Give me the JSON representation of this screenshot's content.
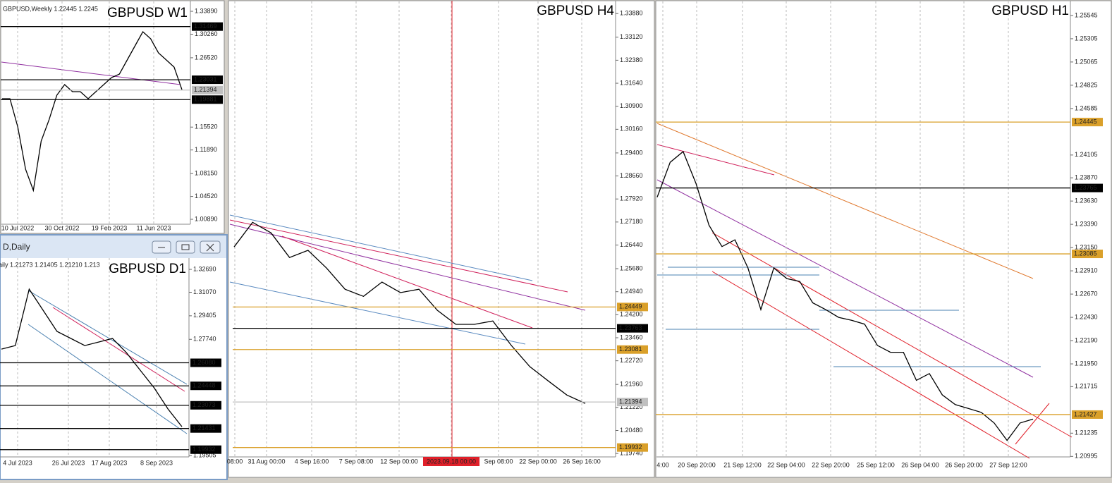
{
  "window_title": "D,Daily",
  "chart_data": [
    {
      "type": "line",
      "title": "GBPUSD W1",
      "header": "GBPUSD,Weekly  1.22445 1.2245",
      "color": "#000000",
      "values": [
        1.2002,
        1.2002,
        1.1555,
        1.0883,
        1.0548,
        1.1331,
        1.1666,
        1.2058,
        1.2226,
        1.2114,
        1.2114,
        1.2002,
        1.2114,
        1.2226,
        1.2338,
        1.2393,
        1.2617,
        1.2841,
        1.3065,
        1.2953,
        1.2729,
        1.2617,
        1.2505,
        1.2147
      ],
      "ylim": [
        1.0011,
        1.3546
      ],
      "yticks": [
        {
          "value": 1.3389,
          "label": "1.33890"
        },
        {
          "value": 1.3026,
          "label": "1.30260"
        },
        {
          "value": 1.2652,
          "label": "1.26520"
        },
        {
          "value": 1.1552,
          "label": "1.15520"
        },
        {
          "value": 1.1189,
          "label": "1.11890"
        },
        {
          "value": 1.0815,
          "label": "1.08150"
        },
        {
          "value": 1.0452,
          "label": "1.04520"
        },
        {
          "value": 1.0089,
          "label": "1.00890"
        }
      ],
      "levels": [
        {
          "value": 1.31469,
          "label": "1.31469",
          "color": "#000000"
        },
        {
          "value": 1.23031,
          "label": "1.23031",
          "color": "#000000"
        },
        {
          "value": 1.21394,
          "label": "1.21394",
          "color": "#c0c0c0"
        },
        {
          "value": 1.19881,
          "label": "1.19881",
          "color": "#000000"
        }
      ],
      "xtick_labels": [
        "10 Jul 2022",
        "30 Oct 2022",
        "19 Feb 2023",
        "11 Jun 2023"
      ]
    },
    {
      "type": "line",
      "title": "GBPUSD D1",
      "header": "aily  1.21273 1.21405 1.21210 1.213",
      "color": "#000000",
      "values": [
        1.2705,
        1.273,
        1.3129,
        1.298,
        1.283,
        1.278,
        1.273,
        1.2755,
        1.278,
        1.268,
        1.2555,
        1.2431,
        1.2281,
        1.2156
      ],
      "ylim": [
        1.1942,
        1.3349
      ],
      "yticks": [
        {
          "value": 1.3269,
          "label": "1.32690"
        },
        {
          "value": 1.3107,
          "label": "1.31070"
        },
        {
          "value": 1.29405,
          "label": "1.29405"
        },
        {
          "value": 1.2774,
          "label": "1.27740"
        },
        {
          "value": 1.19505,
          "label": "1.19505"
        }
      ],
      "levels": [
        {
          "value": 1.2608,
          "label": "1.26080",
          "color": "#000000"
        },
        {
          "value": 1.24448,
          "label": "1.24448",
          "color": "#000000"
        },
        {
          "value": 1.23073,
          "label": "1.23073",
          "color": "#000000"
        },
        {
          "value": 1.21431,
          "label": "1.21431",
          "color": "#000000"
        },
        {
          "value": 1.19932,
          "label": "1.19932",
          "color": "#000000"
        }
      ],
      "xtick_labels": [
        "4 Jul 2023",
        "26 Jul 2023",
        "17 Aug 2023",
        "8 Sep 2023"
      ]
    },
    {
      "type": "line",
      "title": "GBPUSD H4",
      "color": "#000000",
      "values": [
        1.2638,
        1.2717,
        1.2683,
        1.2604,
        1.2627,
        1.257,
        1.2502,
        1.2479,
        1.2525,
        1.2491,
        1.2502,
        1.2434,
        1.2389,
        1.2389,
        1.24,
        1.2321,
        1.2253,
        1.2207,
        1.2162,
        1.2135
      ],
      "ylim": [
        1.1963,
        1.3427
      ],
      "yticks": [
        {
          "value": 1.3388,
          "label": "1.33880"
        },
        {
          "value": 1.3312,
          "label": "1.33120"
        },
        {
          "value": 1.3238,
          "label": "1.32380"
        },
        {
          "value": 1.3164,
          "label": "1.31640"
        },
        {
          "value": 1.309,
          "label": "1.30900"
        },
        {
          "value": 1.3016,
          "label": "1.30160"
        },
        {
          "value": 1.294,
          "label": "1.29400"
        },
        {
          "value": 1.2866,
          "label": "1.28660"
        },
        {
          "value": 1.2792,
          "label": "1.27920"
        },
        {
          "value": 1.2718,
          "label": "1.27180"
        },
        {
          "value": 1.2644,
          "label": "1.26440"
        },
        {
          "value": 1.2568,
          "label": "1.25680"
        },
        {
          "value": 1.2494,
          "label": "1.24940"
        },
        {
          "value": 1.242,
          "label": "1.24200"
        },
        {
          "value": 1.2346,
          "label": "1.23460"
        },
        {
          "value": 1.2272,
          "label": "1.22720"
        },
        {
          "value": 1.2196,
          "label": "1.21960"
        },
        {
          "value": 1.2122,
          "label": "1.21220"
        },
        {
          "value": 1.2048,
          "label": "1.20480"
        },
        {
          "value": 1.1974,
          "label": "1.19740"
        }
      ],
      "levels": [
        {
          "value": 1.24449,
          "label": "1.24449",
          "color": "#daa02a"
        },
        {
          "value": 1.23763,
          "label": "1.23763",
          "color": "#000000"
        },
        {
          "value": 1.23081,
          "label": "1.23081",
          "color": "#daa02a"
        },
        {
          "value": 1.21394,
          "label": "1.21394",
          "color": "#c0c0c0"
        },
        {
          "value": 1.19932,
          "label": "1.19932",
          "color": "#daa02a"
        }
      ],
      "xtick_labels": [
        "08:00",
        "31 Aug 00:00",
        "4 Sep 16:00",
        "7 Sep 08:00",
        "12 Sep 00:00",
        "2023.09.18 00:00",
        "Sep 08:00",
        "22 Sep 00:00",
        "26 Sep 16:00"
      ],
      "highlight_xtick": "2023.09.18 00:00"
    },
    {
      "type": "line",
      "title": "GBPUSD H1",
      "color": "#000000",
      "values": [
        1.2367,
        1.2403,
        1.2414,
        1.2381,
        1.2338,
        1.2316,
        1.2323,
        1.2294,
        1.2251,
        1.2294,
        1.2283,
        1.228,
        1.2258,
        1.2251,
        1.2243,
        1.224,
        1.2236,
        1.2214,
        1.2207,
        1.2207,
        1.2178,
        1.2185,
        1.2163,
        1.2153,
        1.2149,
        1.2145,
        1.2134,
        1.2116,
        1.2134,
        1.2138
      ],
      "ylim": [
        1.2099,
        1.2569
      ],
      "yticks": [
        {
          "value": 1.25545,
          "label": "1.25545"
        },
        {
          "value": 1.25305,
          "label": "1.25305"
        },
        {
          "value": 1.25065,
          "label": "1.25065"
        },
        {
          "value": 1.24825,
          "label": "1.24825"
        },
        {
          "value": 1.24585,
          "label": "1.24585"
        },
        {
          "value": 1.24105,
          "label": "1.24105"
        },
        {
          "value": 1.2387,
          "label": "1.23870"
        },
        {
          "value": 1.2363,
          "label": "1.23630"
        },
        {
          "value": 1.2339,
          "label": "1.23390"
        },
        {
          "value": 1.2315,
          "label": "1.23150"
        },
        {
          "value": 1.2291,
          "label": "1.22910"
        },
        {
          "value": 1.2267,
          "label": "1.22670"
        },
        {
          "value": 1.2243,
          "label": "1.22430"
        },
        {
          "value": 1.2219,
          "label": "1.22190"
        },
        {
          "value": 1.2195,
          "label": "1.21950"
        },
        {
          "value": 1.21715,
          "label": "1.21715"
        },
        {
          "value": 1.21235,
          "label": "1.21235"
        },
        {
          "value": 1.20995,
          "label": "1.20995"
        }
      ],
      "levels": [
        {
          "value": 1.24445,
          "label": "1.24445",
          "color": "#daa02a"
        },
        {
          "value": 1.23765,
          "label": "1.23765",
          "color": "#000000"
        },
        {
          "value": 1.23085,
          "label": "1.23085",
          "color": "#daa02a"
        },
        {
          "value": 1.21427,
          "label": "1.21427",
          "color": "#daa02a"
        }
      ],
      "xtick_labels": [
        "4:00",
        "20 Sep 20:00",
        "21 Sep 12:00",
        "22 Sep 04:00",
        "22 Sep 20:00",
        "25 Sep 12:00",
        "26 Sep 04:00",
        "26 Sep 20:00",
        "27 Sep 12:00"
      ]
    }
  ]
}
